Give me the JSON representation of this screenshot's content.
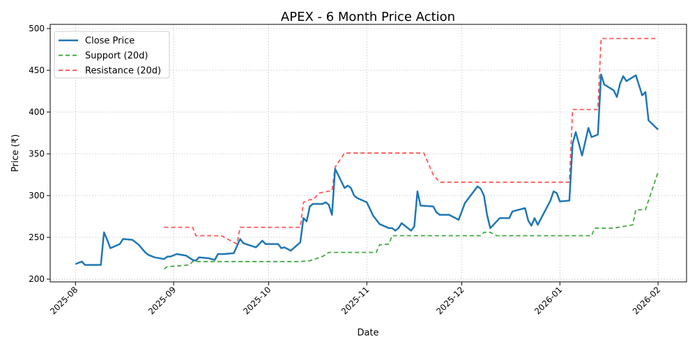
{
  "chart_data": {
    "type": "line",
    "title": "APEX - 6 Month Price Action",
    "xlabel": "Date",
    "ylabel": "Price (₹)",
    "xlim": [
      "2025-07-24",
      "2026-02-10"
    ],
    "ylim": [
      196.7,
      505
    ],
    "x_ticks": [
      "2025-08-01",
      "2025-09-01",
      "2025-10-01",
      "2025-11-01",
      "2025-12-01",
      "2026-01-01",
      "2026-02-01"
    ],
    "x_tick_labels": [
      "2025-08",
      "2025-09",
      "2025-10",
      "2025-11",
      "2025-12",
      "2026-01",
      "2026-02"
    ],
    "y_ticks": [
      200,
      250,
      300,
      350,
      400,
      450,
      500
    ],
    "y_tick_labels": [
      "200",
      "250",
      "300",
      "350",
      "400",
      "450",
      "500"
    ],
    "grid": true,
    "legend_position": "top-left",
    "series": [
      {
        "name": "Close Price",
        "color": "#1f77b4",
        "style": "solid",
        "points": [
          [
            "2025-08-01",
            218
          ],
          [
            "2025-08-03",
            221
          ],
          [
            "2025-08-04",
            217
          ],
          [
            "2025-08-09",
            217
          ],
          [
            "2025-08-10",
            256
          ],
          [
            "2025-08-11",
            247
          ],
          [
            "2025-08-12",
            237
          ],
          [
            "2025-08-15",
            242
          ],
          [
            "2025-08-16",
            248
          ],
          [
            "2025-08-19",
            247
          ],
          [
            "2025-08-21",
            241
          ],
          [
            "2025-08-23",
            232
          ],
          [
            "2025-08-24",
            229
          ],
          [
            "2025-08-26",
            226
          ],
          [
            "2025-08-29",
            224
          ],
          [
            "2025-08-30",
            227
          ],
          [
            "2025-08-31",
            227
          ],
          [
            "2025-09-02",
            230
          ],
          [
            "2025-09-05",
            228
          ],
          [
            "2025-09-07",
            223
          ],
          [
            "2025-09-08",
            222
          ],
          [
            "2025-09-09",
            226
          ],
          [
            "2025-09-12",
            225
          ],
          [
            "2025-09-14",
            223
          ],
          [
            "2025-09-15",
            230
          ],
          [
            "2025-09-17",
            230
          ],
          [
            "2025-09-20",
            231
          ],
          [
            "2025-09-22",
            248
          ],
          [
            "2025-09-23",
            243
          ],
          [
            "2025-09-27",
            238
          ],
          [
            "2025-09-28",
            242
          ],
          [
            "2025-09-29",
            246
          ],
          [
            "2025-09-30",
            242
          ],
          [
            "2025-10-04",
            242
          ],
          [
            "2025-10-05",
            237
          ],
          [
            "2025-10-06",
            238
          ],
          [
            "2025-10-08",
            234
          ],
          [
            "2025-10-11",
            244
          ],
          [
            "2025-10-12",
            273
          ],
          [
            "2025-10-13",
            269
          ],
          [
            "2025-10-14",
            287
          ],
          [
            "2025-10-15",
            290
          ],
          [
            "2025-10-18",
            290
          ],
          [
            "2025-10-19",
            292
          ],
          [
            "2025-10-20",
            289
          ],
          [
            "2025-10-21",
            277
          ],
          [
            "2025-10-22",
            332
          ],
          [
            "2025-10-25",
            309
          ],
          [
            "2025-10-26",
            312
          ],
          [
            "2025-10-27",
            309
          ],
          [
            "2025-10-28",
            300
          ],
          [
            "2025-10-29",
            297
          ],
          [
            "2025-11-01",
            292
          ],
          [
            "2025-11-02",
            284
          ],
          [
            "2025-11-03",
            276
          ],
          [
            "2025-11-05",
            266
          ],
          [
            "2025-11-08",
            261
          ],
          [
            "2025-11-09",
            261
          ],
          [
            "2025-11-10",
            258
          ],
          [
            "2025-11-11",
            261
          ],
          [
            "2025-11-12",
            267
          ],
          [
            "2025-11-15",
            258
          ],
          [
            "2025-11-16",
            263
          ],
          [
            "2025-11-17",
            305
          ],
          [
            "2025-11-18",
            288
          ],
          [
            "2025-11-22",
            287
          ],
          [
            "2025-11-23",
            280
          ],
          [
            "2025-11-24",
            277
          ],
          [
            "2025-11-27",
            277
          ],
          [
            "2025-11-29",
            273
          ],
          [
            "2025-11-30",
            271
          ],
          [
            "2025-12-02",
            291
          ],
          [
            "2025-12-06",
            311
          ],
          [
            "2025-12-07",
            308
          ],
          [
            "2025-12-08",
            300
          ],
          [
            "2025-12-09",
            277
          ],
          [
            "2025-12-10",
            261
          ],
          [
            "2025-12-13",
            273
          ],
          [
            "2025-12-16",
            273
          ],
          [
            "2025-12-17",
            281
          ],
          [
            "2025-12-21",
            285
          ],
          [
            "2025-12-22",
            270
          ],
          [
            "2025-12-23",
            264
          ],
          [
            "2025-12-24",
            273
          ],
          [
            "2025-12-25",
            265
          ],
          [
            "2025-12-29",
            294
          ],
          [
            "2025-12-30",
            305
          ],
          [
            "2025-12-31",
            303
          ],
          [
            "2026-01-01",
            293
          ],
          [
            "2026-01-04",
            294
          ],
          [
            "2026-01-05",
            362
          ],
          [
            "2026-01-06",
            376
          ],
          [
            "2026-01-08",
            348
          ],
          [
            "2026-01-10",
            381
          ],
          [
            "2026-01-11",
            370
          ],
          [
            "2026-01-13",
            373
          ],
          [
            "2026-01-14",
            445
          ],
          [
            "2026-01-15",
            433
          ],
          [
            "2026-01-18",
            426
          ],
          [
            "2026-01-19",
            418
          ],
          [
            "2026-01-20",
            434
          ],
          [
            "2026-01-21",
            443
          ],
          [
            "2026-01-22",
            437
          ],
          [
            "2026-01-25",
            444
          ],
          [
            "2026-01-27",
            420
          ],
          [
            "2026-01-28",
            424
          ],
          [
            "2026-01-29",
            390
          ],
          [
            "2026-02-01",
            379
          ]
        ]
      },
      {
        "name": "Support (20d)",
        "color": "#2ca02c",
        "style": "dashed",
        "points": [
          [
            "2025-08-29",
            212
          ],
          [
            "2025-08-30",
            215
          ],
          [
            "2025-09-03",
            216
          ],
          [
            "2025-09-06",
            217
          ],
          [
            "2025-09-07",
            221
          ],
          [
            "2025-10-11",
            221
          ],
          [
            "2025-10-14",
            222
          ],
          [
            "2025-10-18",
            227
          ],
          [
            "2025-10-20",
            232
          ],
          [
            "2025-11-04",
            232
          ],
          [
            "2025-11-05",
            241
          ],
          [
            "2025-11-08",
            242
          ],
          [
            "2025-11-09",
            252
          ],
          [
            "2025-12-07",
            252
          ],
          [
            "2025-12-08",
            256
          ],
          [
            "2025-12-10",
            256
          ],
          [
            "2025-12-12",
            252
          ],
          [
            "2026-01-11",
            252
          ],
          [
            "2026-01-12",
            261
          ],
          [
            "2026-01-18",
            261
          ],
          [
            "2026-01-24",
            265
          ],
          [
            "2026-01-25",
            283
          ],
          [
            "2026-01-28",
            283
          ],
          [
            "2026-02-01",
            328
          ]
        ]
      },
      {
        "name": "Resistance (20d)",
        "color": "#ff4444",
        "style": "dashed",
        "points": [
          [
            "2025-08-29",
            262
          ],
          [
            "2025-09-07",
            262
          ],
          [
            "2025-09-08",
            252
          ],
          [
            "2025-09-16",
            252
          ],
          [
            "2025-09-21",
            242
          ],
          [
            "2025-09-22",
            262
          ],
          [
            "2025-10-11",
            262
          ],
          [
            "2025-10-12",
            292
          ],
          [
            "2025-10-14",
            295
          ],
          [
            "2025-10-15",
            295
          ],
          [
            "2025-10-17",
            303
          ],
          [
            "2025-10-21",
            306
          ],
          [
            "2025-10-22",
            334
          ],
          [
            "2025-10-25",
            351
          ],
          [
            "2025-11-19",
            351
          ],
          [
            "2025-11-22",
            325
          ],
          [
            "2025-11-24",
            316
          ],
          [
            "2026-01-04",
            316
          ],
          [
            "2026-01-05",
            403
          ],
          [
            "2026-01-13",
            403
          ],
          [
            "2026-01-14",
            488
          ],
          [
            "2026-02-01",
            488
          ]
        ]
      }
    ]
  }
}
